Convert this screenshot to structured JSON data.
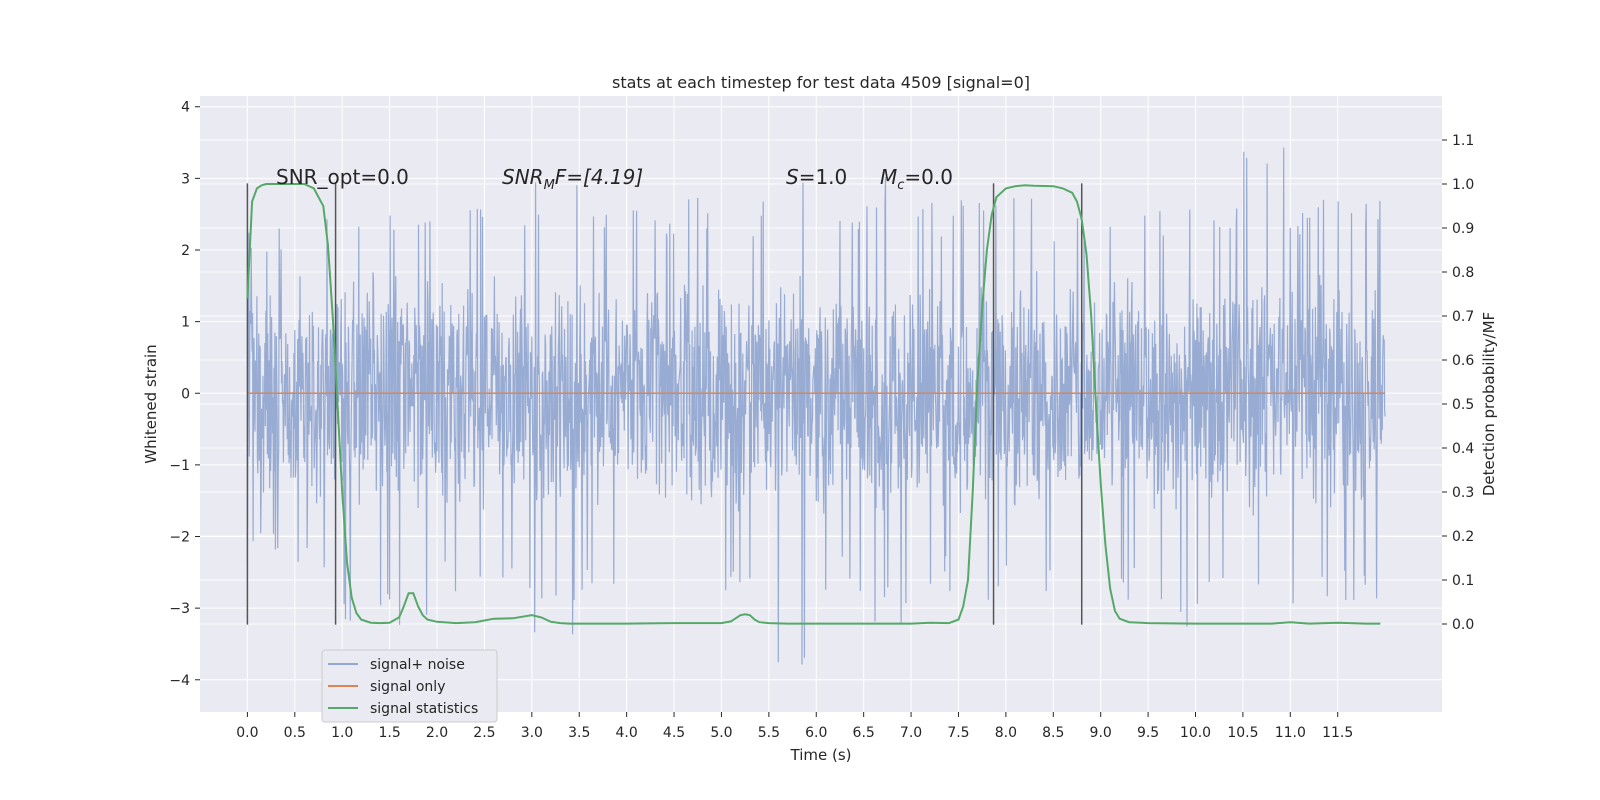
{
  "chart_data": {
    "type": "line",
    "title": "stats at each timestep for test data 4509 [signal=0]",
    "xlabel": "Time (s)",
    "ylabel": "Whitened strain",
    "y2label": "Detection probability/MF",
    "xlim": [
      -0.5,
      12.6
    ],
    "ylim": [
      -4.45,
      4.15
    ],
    "y2lim": [
      -0.2,
      1.2
    ],
    "xticks": [
      "0.0",
      "0.5",
      "1.0",
      "1.5",
      "2.0",
      "2.5",
      "3.0",
      "3.5",
      "4.0",
      "4.5",
      "5.0",
      "5.5",
      "6.0",
      "6.5",
      "7.0",
      "7.5",
      "8.0",
      "8.5",
      "9.0",
      "9.5",
      "10.0",
      "10.5",
      "11.0",
      "11.5"
    ],
    "yticks": [
      "4",
      "3",
      "2",
      "1",
      "0",
      "−1",
      "−2",
      "−3",
      "−4"
    ],
    "y2ticks": [
      "1.1",
      "1.0",
      "0.9",
      "0.8",
      "0.7",
      "0.6",
      "0.5",
      "0.4",
      "0.3",
      "0.2",
      "0.1",
      "0.0"
    ],
    "grid": true,
    "legend_position": "lower-left",
    "annotations": {
      "snr_opt": "SNR_opt=0.0",
      "snr_mf_name": "SNR",
      "snr_mf_sub": "M",
      "snr_mf_rest": "F=[4.19]",
      "s_name": "S",
      "s_rest": "=1.0",
      "mc_name": "M",
      "mc_sub": "c",
      "mc_rest": "=0.0"
    },
    "series": [
      {
        "name": "signal+ noise",
        "color": "#92a8d1",
        "description_x_range": [
          0.0,
          12.0
        ],
        "envelope_upper": [
          2.3,
          2.5,
          2.8,
          2.6,
          2.7,
          2.6,
          3.0,
          2.7,
          2.6,
          2.8,
          2.7,
          3.0,
          2.5,
          3.2,
          2.7,
          2.9,
          3.1,
          2.6,
          2.8,
          2.6,
          2.7,
          3.5,
          2.7,
          2.8
        ],
        "envelope_lower": [
          -2.4,
          -2.6,
          -3.2,
          -3.3,
          -2.8,
          -3.0,
          -3.4,
          -2.9,
          -3.1,
          -2.8,
          -2.9,
          -3.8,
          -2.8,
          -3.3,
          -2.8,
          -2.9,
          -3.0,
          -2.8,
          -2.9,
          -3.3,
          -3.0,
          -2.9,
          -3.1,
          -2.9
        ]
      },
      {
        "name": "signal only",
        "color": "#dd8452",
        "x": [
          0.0,
          12.0
        ],
        "y": [
          0.0,
          0.0
        ]
      },
      {
        "name": "signal statistics",
        "color": "#55a868",
        "axis": "right",
        "x": [
          0.0,
          0.05,
          0.1,
          0.15,
          0.2,
          0.25,
          0.3,
          0.4,
          0.5,
          0.6,
          0.7,
          0.8,
          0.85,
          0.9,
          0.95,
          1.0,
          1.05,
          1.1,
          1.15,
          1.2,
          1.3,
          1.4,
          1.5,
          1.6,
          1.65,
          1.7,
          1.75,
          1.8,
          1.85,
          1.9,
          2.0,
          2.2,
          2.4,
          2.6,
          2.8,
          3.0,
          3.1,
          3.2,
          3.3,
          3.4,
          3.5,
          4.0,
          4.5,
          5.0,
          5.1,
          5.2,
          5.25,
          5.3,
          5.35,
          5.4,
          5.5,
          5.7,
          6.0,
          6.5,
          7.0,
          7.2,
          7.4,
          7.5,
          7.55,
          7.6,
          7.65,
          7.7,
          7.75,
          7.8,
          7.85,
          7.9,
          8.0,
          8.1,
          8.2,
          8.3,
          8.5,
          8.6,
          8.7,
          8.75,
          8.8,
          8.85,
          8.9,
          8.95,
          9.0,
          9.05,
          9.1,
          9.15,
          9.2,
          9.3,
          9.5,
          10.0,
          10.5,
          10.8,
          11.0,
          11.2,
          11.5,
          11.8,
          11.95
        ],
        "y": [
          0.74,
          0.96,
          0.99,
          0.997,
          1.0,
          1.0,
          1.0,
          1.0,
          1.0,
          1.0,
          0.99,
          0.95,
          0.86,
          0.7,
          0.5,
          0.3,
          0.14,
          0.06,
          0.025,
          0.01,
          0.003,
          0.002,
          0.003,
          0.015,
          0.04,
          0.07,
          0.07,
          0.04,
          0.02,
          0.01,
          0.005,
          0.002,
          0.004,
          0.012,
          0.013,
          0.02,
          0.015,
          0.005,
          0.002,
          0.001,
          0.001,
          0.001,
          0.002,
          0.002,
          0.006,
          0.02,
          0.022,
          0.02,
          0.01,
          0.004,
          0.002,
          0.001,
          0.001,
          0.001,
          0.001,
          0.003,
          0.002,
          0.01,
          0.04,
          0.1,
          0.3,
          0.55,
          0.72,
          0.85,
          0.93,
          0.97,
          0.99,
          0.995,
          0.997,
          0.996,
          0.995,
          0.99,
          0.98,
          0.96,
          0.92,
          0.84,
          0.7,
          0.5,
          0.32,
          0.18,
          0.08,
          0.03,
          0.012,
          0.004,
          0.002,
          0.001,
          0.001,
          0.001,
          0.004,
          0.001,
          0.003,
          0.001,
          0.001
        ]
      }
    ],
    "vertical_markers": [
      0.0,
      0.93,
      7.87,
      8.8
    ]
  }
}
